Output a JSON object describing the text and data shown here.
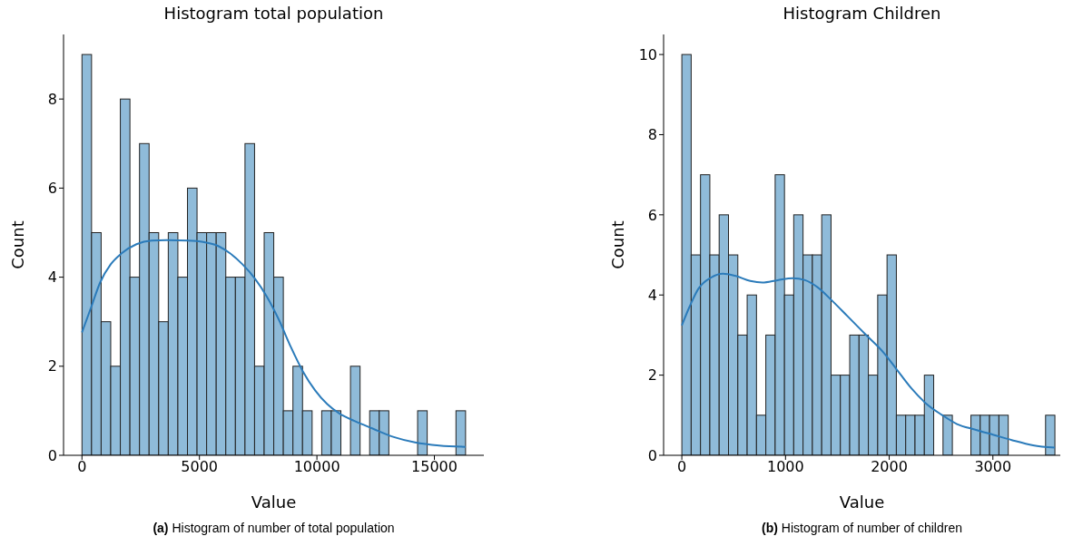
{
  "chart_data": [
    {
      "type": "histogram",
      "title": "Histogram total population",
      "xlabel": "Value",
      "ylabel": "Count",
      "xlim": [
        -784,
        17105
      ],
      "ylim": [
        0,
        9.45
      ],
      "xticks": [
        0,
        5000,
        10000,
        15000
      ],
      "yticks": [
        0,
        2,
        4,
        6,
        8
      ],
      "annotations": [
        "(a) Histogram of number of total population"
      ],
      "series": [
        {
          "color": "#8fbbd9",
          "bins": [
            0,
            408,
            816,
            1224,
            1633,
            2041,
            2449,
            2857,
            3265,
            3673,
            4082,
            4490,
            4898,
            5306,
            5714,
            6122,
            6531,
            6939,
            7347,
            7755,
            8163,
            8571,
            8980,
            9388,
            9796,
            10204,
            10612,
            11020,
            11429,
            11837,
            12245,
            12653,
            13061,
            13469,
            13878,
            14286,
            14694,
            15102,
            15510,
            15918,
            16327
          ],
          "values": [
            9,
            5,
            3,
            2,
            8,
            4,
            7,
            5,
            3,
            5,
            4,
            6,
            5,
            5,
            5,
            4,
            4,
            7,
            2,
            5,
            4,
            1,
            2,
            1,
            0,
            1,
            1,
            0,
            2,
            0,
            1,
            1,
            0,
            0,
            0,
            1,
            0,
            0,
            0,
            1
          ]
        },
        {
          "type": "line",
          "color": "#2b7bba",
          "x": [
            0,
            387,
            773,
            1224,
            1675,
            2320,
            2964,
            3608,
            4510,
            5155,
            5799,
            6314,
            6830,
            7345,
            7861,
            8376,
            8892,
            9407,
            9923,
            10438,
            10954,
            11598,
            12371,
            13273,
            14175,
            15206,
            16327
          ],
          "values": [
            2.76,
            3.32,
            3.88,
            4.29,
            4.53,
            4.74,
            4.82,
            4.83,
            4.82,
            4.79,
            4.7,
            4.53,
            4.29,
            3.98,
            3.57,
            3.05,
            2.43,
            1.88,
            1.46,
            1.15,
            0.94,
            0.77,
            0.6,
            0.41,
            0.29,
            0.22,
            0.19
          ]
        }
      ]
    },
    {
      "type": "histogram",
      "title": "Histogram Children",
      "xlabel": "Value",
      "ylabel": "Count",
      "xlim": [
        -176,
        3650
      ],
      "ylim": [
        0,
        10.5
      ],
      "xticks": [
        0,
        1000,
        2000,
        3000
      ],
      "yticks": [
        0,
        2,
        4,
        6,
        8,
        10
      ],
      "annotations": [
        "(b) Histogram of number of children"
      ],
      "series": [
        {
          "color": "#8fbbd9",
          "bins": [
            0,
            90,
            180,
            270,
            360,
            450,
            540,
            630,
            720,
            810,
            900,
            990,
            1079,
            1169,
            1259,
            1349,
            1439,
            1529,
            1619,
            1709,
            1799,
            1889,
            1979,
            2069,
            2159,
            2249,
            2339,
            2429,
            2519,
            2609,
            2698,
            2788,
            2878,
            2968,
            3058,
            3148,
            3238,
            3328,
            3418,
            3508,
            3598
          ],
          "values": [
            10,
            5,
            7,
            5,
            6,
            5,
            3,
            4,
            1,
            3,
            7,
            4,
            6,
            5,
            5,
            6,
            2,
            2,
            3,
            3,
            2,
            4,
            5,
            1,
            1,
            1,
            2,
            0,
            1,
            0,
            0,
            1,
            1,
            1,
            1,
            0,
            0,
            0,
            0,
            1
          ]
        },
        {
          "type": "line",
          "color": "#2b7bba",
          "x": [
            0,
            73,
            161,
            279,
            396,
            513,
            660,
            777,
            924,
            1070,
            1188,
            1305,
            1452,
            1598,
            1774,
            1950,
            2067,
            2214,
            2361,
            2507,
            2654,
            2830,
            3006,
            3182,
            3387,
            3598
          ],
          "values": [
            3.24,
            3.7,
            4.16,
            4.43,
            4.53,
            4.48,
            4.35,
            4.31,
            4.37,
            4.42,
            4.37,
            4.2,
            3.85,
            3.47,
            3.01,
            2.55,
            2.16,
            1.67,
            1.28,
            1.01,
            0.78,
            0.64,
            0.51,
            0.38,
            0.25,
            0.19
          ]
        }
      ]
    }
  ]
}
